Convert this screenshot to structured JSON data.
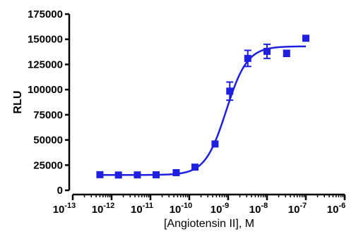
{
  "chart_data": {
    "type": "scatter",
    "xlabel": "[Angiotensin II], M",
    "ylabel": "RLU",
    "x_scale": "log",
    "xlim": [
      1e-13,
      1e-06
    ],
    "ylim": [
      0,
      175000
    ],
    "x_ticks": [
      {
        "base": "10",
        "exp": "-13",
        "value": 1e-13
      },
      {
        "base": "10",
        "exp": "-12",
        "value": 1e-12
      },
      {
        "base": "10",
        "exp": "-11",
        "value": 1e-11
      },
      {
        "base": "10",
        "exp": "-10",
        "value": 1e-10
      },
      {
        "base": "10",
        "exp": "-9",
        "value": 1e-09
      },
      {
        "base": "10",
        "exp": "-8",
        "value": 1e-08
      },
      {
        "base": "10",
        "exp": "-7",
        "value": 1e-07
      },
      {
        "base": "10",
        "exp": "-6",
        "value": 1e-06
      }
    ],
    "y_ticks": [
      {
        "label": "0",
        "value": 0
      },
      {
        "label": "25000",
        "value": 25000
      },
      {
        "label": "50000",
        "value": 50000
      },
      {
        "label": "75000",
        "value": 75000
      },
      {
        "label": "100000",
        "value": 100000
      },
      {
        "label": "125000",
        "value": 125000
      },
      {
        "label": "150000",
        "value": 150000
      },
      {
        "label": "175000",
        "value": 175000
      }
    ],
    "points": [
      {
        "x": 5e-13,
        "y": 15500,
        "err": 0
      },
      {
        "x": 1.5e-12,
        "y": 15200,
        "err": 0
      },
      {
        "x": 4.6e-12,
        "y": 15300,
        "err": 0
      },
      {
        "x": 1.4e-11,
        "y": 15400,
        "err": 0
      },
      {
        "x": 4.6e-11,
        "y": 17500,
        "err": 0
      },
      {
        "x": 1.4e-10,
        "y": 23000,
        "err": 0
      },
      {
        "x": 4.6e-10,
        "y": 46000,
        "err": 0
      },
      {
        "x": 1.1e-09,
        "y": 98500,
        "err": 9000
      },
      {
        "x": 3.2e-09,
        "y": 131000,
        "err": 8000
      },
      {
        "x": 1e-08,
        "y": 138000,
        "err": 7000
      },
      {
        "x": 3.2e-08,
        "y": 136000,
        "err": 3000
      },
      {
        "x": 1e-07,
        "y": 151000,
        "err": 2500
      }
    ],
    "fit": {
      "bottom": 15200,
      "top": 143000,
      "log_ec50": -9.05,
      "hill": 1.6
    },
    "colors": {
      "series": "#1f1fe0",
      "axis": "#000000"
    }
  }
}
